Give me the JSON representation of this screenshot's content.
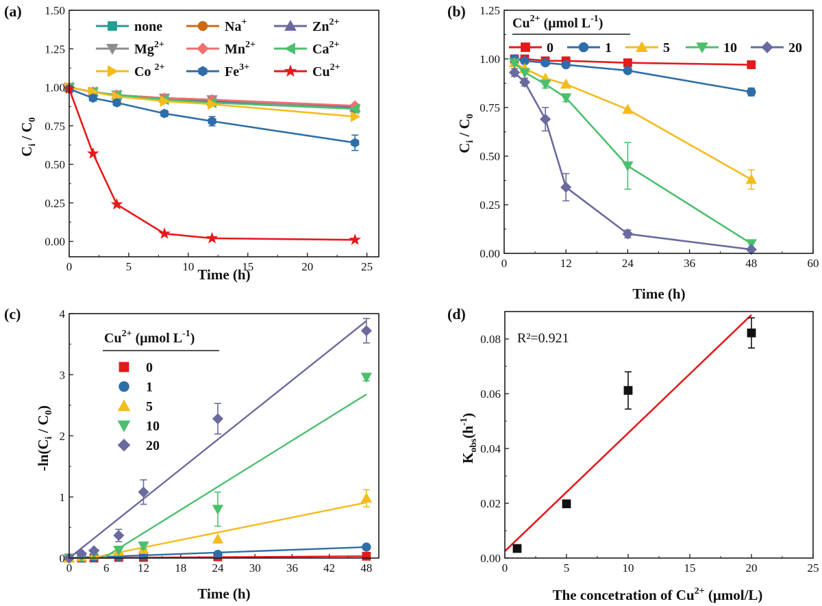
{
  "chart_data": [
    {
      "panel": "(a)",
      "type": "line",
      "xlabel": "Time (h)",
      "ylabel": "C_i / C_0",
      "xlim": [
        0,
        26
      ],
      "ylim": [
        -0.1,
        1.5
      ],
      "xticks": [
        0,
        5,
        10,
        15,
        20,
        25
      ],
      "yticks": [
        0.0,
        0.25,
        0.5,
        0.75,
        1.0,
        1.25,
        1.5
      ],
      "ytick_decimals": 2,
      "legend_position": "top",
      "x": [
        0,
        2,
        4,
        8,
        12,
        24
      ],
      "series": [
        {
          "name": "none",
          "sup": "",
          "color": "#1f9e93",
          "marker": "square",
          "values": [
            1.0,
            0.97,
            0.95,
            0.93,
            0.91,
            0.86
          ]
        },
        {
          "name": "Na",
          "sup": "+",
          "color": "#cc6a12",
          "marker": "circle",
          "values": [
            1.0,
            0.97,
            0.95,
            0.93,
            0.92,
            0.87
          ]
        },
        {
          "name": "Zn",
          "sup": "2+",
          "color": "#6a6a9e",
          "marker": "triangle-up",
          "values": [
            1.0,
            0.97,
            0.95,
            0.93,
            0.91,
            0.87
          ]
        },
        {
          "name": "Mg",
          "sup": "2+",
          "color": "#8c8c8c",
          "marker": "triangle-down",
          "values": [
            1.0,
            0.97,
            0.95,
            0.93,
            0.92,
            0.86
          ]
        },
        {
          "name": "Mn",
          "sup": "2+",
          "color": "#ef6f6f",
          "marker": "diamond",
          "values": [
            1.0,
            0.97,
            0.95,
            0.93,
            0.92,
            0.88
          ]
        },
        {
          "name": "Ca",
          "sup": "2+",
          "color": "#4cbf6e",
          "marker": "triangle-left",
          "values": [
            1.0,
            0.97,
            0.95,
            0.92,
            0.9,
            0.86
          ]
        },
        {
          "name": "Co ",
          "sup": "2+",
          "color": "#f3bc1c",
          "marker": "triangle-right",
          "values": [
            1.0,
            0.97,
            0.94,
            0.91,
            0.89,
            0.81
          ]
        },
        {
          "name": "Fe",
          "sup": "3+",
          "color": "#2f6da8",
          "marker": "hexagon",
          "values": [
            0.99,
            0.93,
            0.9,
            0.83,
            0.78,
            0.64
          ],
          "errors": [
            0.02,
            0.02,
            0.02,
            0.02,
            0.03,
            0.05
          ]
        },
        {
          "name": "Cu",
          "sup": "2+",
          "color": "#e41a1a",
          "marker": "star",
          "values": [
            0.99,
            0.57,
            0.24,
            0.05,
            0.02,
            0.01
          ]
        }
      ]
    },
    {
      "panel": "(b)",
      "type": "line",
      "xlabel": "Time (h)",
      "ylabel": "C_i / C_0",
      "xlim": [
        0,
        60
      ],
      "ylim": [
        0,
        1.25
      ],
      "xticks": [
        0,
        12,
        24,
        36,
        48,
        60
      ],
      "yticks": [
        0.0,
        0.25,
        0.5,
        0.75,
        1.0,
        1.25
      ],
      "ytick_decimals": 2,
      "legend_title": "Cu",
      "legend_title_sup": "2+",
      "legend_title_rest": " (μmol L",
      "legend_title_unit_sup": "-1",
      "legend_title_close": ")",
      "legend_position": "top",
      "x": [
        2,
        4,
        8,
        12,
        24,
        48
      ],
      "series": [
        {
          "name": "0",
          "color": "#e41a1a",
          "marker": "square",
          "values": [
            1.0,
            1.0,
            0.99,
            0.99,
            0.98,
            0.97
          ]
        },
        {
          "name": "1",
          "color": "#2f6da8",
          "marker": "circle",
          "values": [
            1.0,
            0.99,
            0.98,
            0.97,
            0.94,
            0.83
          ],
          "errors": [
            0,
            0,
            0,
            0,
            0.01,
            0.02
          ]
        },
        {
          "name": "5",
          "color": "#f3bc1c",
          "marker": "triangle-up",
          "values": [
            0.98,
            0.95,
            0.9,
            0.87,
            0.74,
            0.38
          ],
          "errors": [
            0,
            0,
            0,
            0,
            0,
            0.05
          ]
        },
        {
          "name": "10",
          "color": "#4cbf6e",
          "marker": "triangle-down",
          "values": [
            0.98,
            0.93,
            0.87,
            0.8,
            0.45,
            0.05
          ],
          "errors": [
            0,
            0,
            0.02,
            0.02,
            0.12,
            0
          ]
        },
        {
          "name": "20",
          "color": "#6a6a9e",
          "marker": "diamond",
          "values": [
            0.93,
            0.88,
            0.69,
            0.34,
            0.1,
            0.02
          ],
          "errors": [
            0.02,
            0.02,
            0.06,
            0.07,
            0.02,
            0
          ]
        }
      ]
    },
    {
      "panel": "(c)",
      "type": "scatter",
      "xlabel": "Time (h)",
      "ylabel": "-ln(C_i / C_0)",
      "xlim": [
        0,
        50
      ],
      "ylim": [
        0,
        4
      ],
      "xticks": [
        0,
        6,
        12,
        18,
        24,
        30,
        36,
        42,
        48
      ],
      "yticks": [
        0,
        1,
        2,
        3,
        4
      ],
      "ytick_decimals": 0,
      "legend_title": "Cu",
      "legend_title_sup": "2+",
      "legend_title_rest": " (μmol L",
      "legend_title_unit_sup": "-1",
      "legend_title_close": ")",
      "legend_position": "left",
      "x": [
        0,
        2,
        4,
        8,
        12,
        24,
        48
      ],
      "series": [
        {
          "name": "0",
          "color": "#e41a1a",
          "marker": "square",
          "values": [
            0.0,
            0.0,
            0.0,
            0.01,
            0.01,
            0.02,
            0.03
          ],
          "fit": [
            [
              0,
              0.0
            ],
            [
              48,
              0.03
            ]
          ]
        },
        {
          "name": "1",
          "color": "#2f6da8",
          "marker": "circle",
          "values": [
            0.0,
            0.0,
            0.01,
            0.02,
            0.03,
            0.06,
            0.18
          ],
          "fit": [
            [
              0,
              0.0
            ],
            [
              48,
              0.18
            ]
          ]
        },
        {
          "name": "5",
          "color": "#f3bc1c",
          "marker": "triangle-up",
          "values": [
            0.0,
            0.02,
            0.05,
            0.11,
            0.14,
            0.31,
            0.98
          ],
          "errors": [
            0,
            0,
            0,
            0,
            0,
            0,
            0.14
          ],
          "fit": [
            [
              3.5,
              0.0
            ],
            [
              48,
              0.91
            ]
          ]
        },
        {
          "name": "10",
          "color": "#4cbf6e",
          "marker": "triangle-down",
          "values": [
            0.0,
            0.02,
            0.07,
            0.13,
            0.2,
            0.8,
            2.96
          ],
          "errors": [
            0,
            0,
            0,
            0,
            0.05,
            0.28,
            0.06
          ],
          "fit": [
            [
              5.5,
              0.0
            ],
            [
              48,
              2.68
            ]
          ]
        },
        {
          "name": "20",
          "color": "#6a6a9e",
          "marker": "diamond",
          "values": [
            0.0,
            0.07,
            0.12,
            0.37,
            1.08,
            2.28,
            3.72
          ],
          "errors": [
            0,
            0,
            0,
            0.1,
            0.2,
            0.25,
            0.2
          ],
          "fit": [
            [
              0,
              0.0
            ],
            [
              48,
              3.88
            ]
          ]
        }
      ]
    },
    {
      "panel": "(d)",
      "type": "scatter",
      "xlabel": "The concetration of Cu",
      "xlabel_sup": "2+",
      "xlabel_rest": " (μmol/L)",
      "ylabel": "K_obs (h^-1)",
      "xlim": [
        0,
        25
      ],
      "ylim": [
        0,
        0.09
      ],
      "xticks": [
        0,
        5,
        10,
        15,
        20,
        25
      ],
      "yticks": [
        0.0,
        0.02,
        0.04,
        0.06,
        0.08
      ],
      "ytick_decimals": 2,
      "annotation": "R²=0.921",
      "x": [
        1,
        5,
        10,
        20
      ],
      "series": [
        {
          "name": "K_obs",
          "color": "#111111",
          "marker": "square",
          "values": [
            0.0035,
            0.0198,
            0.0612,
            0.0822
          ],
          "errors": [
            0,
            0.001,
            0.0068,
            0.0055
          ]
        }
      ],
      "fit": {
        "color": "#e41a1a",
        "points": [
          [
            0,
            0.0025
          ],
          [
            20,
            0.0888
          ]
        ]
      }
    }
  ]
}
